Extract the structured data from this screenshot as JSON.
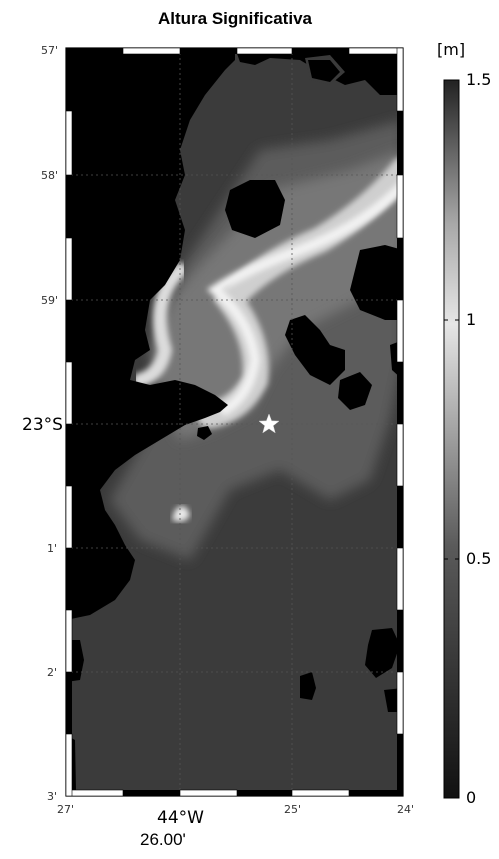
{
  "title": "Altura Significativa",
  "colorbar": {
    "unit": "[m]",
    "min": 0,
    "max": 1.5,
    "ticks": [
      {
        "value": 0,
        "label": "0"
      },
      {
        "value": 0.5,
        "label": "0.5"
      },
      {
        "value": 1,
        "label": "1"
      },
      {
        "value": 1.5,
        "label": "1.5"
      }
    ]
  },
  "axes": {
    "y_labels": [
      "57'",
      "58'",
      "59'",
      "23°S",
      "1'",
      "2'",
      "3'"
    ],
    "x_labels": [
      "27'",
      "44°W",
      "25'",
      "24'"
    ],
    "x_center_label": "26.00'"
  },
  "marker": {
    "name": "station-star",
    "symbol": "★"
  },
  "colors": {
    "land": "#000000",
    "sea_low": "#3a3a3a",
    "wave_high": "#f0f0f0"
  }
}
